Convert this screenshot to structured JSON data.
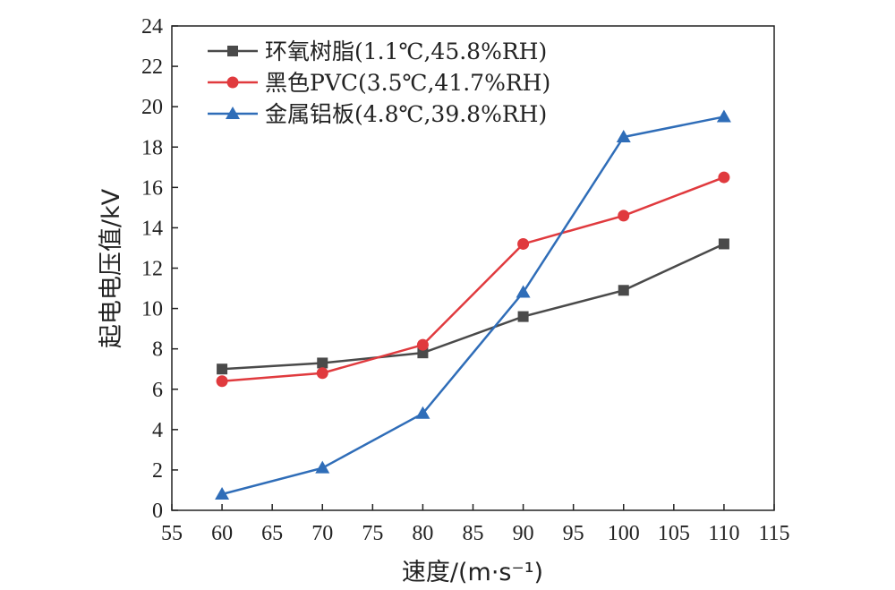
{
  "chart_data": {
    "type": "line",
    "xlabel": "速度/(m·s⁻¹)",
    "ylabel": "起电电压值/kV",
    "xlim": [
      55,
      115
    ],
    "ylim": [
      0,
      24
    ],
    "xticks": [
      55,
      60,
      65,
      70,
      75,
      80,
      85,
      90,
      95,
      100,
      105,
      110,
      115
    ],
    "yticks": [
      0,
      2,
      4,
      6,
      8,
      10,
      12,
      14,
      16,
      18,
      20,
      22,
      24
    ],
    "x": [
      60,
      70,
      80,
      90,
      100,
      110
    ],
    "grid": false,
    "legend_position": "top-left",
    "series": [
      {
        "name": "环氧树脂(1.1℃,45.8%RH)",
        "color": "#4a4a4a",
        "marker": "square",
        "values": [
          7.0,
          7.3,
          7.8,
          9.6,
          10.9,
          13.2
        ]
      },
      {
        "name": "黑色PVC(3.5℃,41.7%RH)",
        "color": "#e03a3e",
        "marker": "circle",
        "values": [
          6.4,
          6.8,
          8.2,
          13.2,
          14.6,
          16.5
        ]
      },
      {
        "name": "金属铝板(4.8℃,39.8%RH)",
        "color": "#2f6db8",
        "marker": "triangle",
        "values": [
          0.8,
          2.1,
          4.8,
          10.8,
          18.5,
          19.5
        ]
      }
    ]
  }
}
